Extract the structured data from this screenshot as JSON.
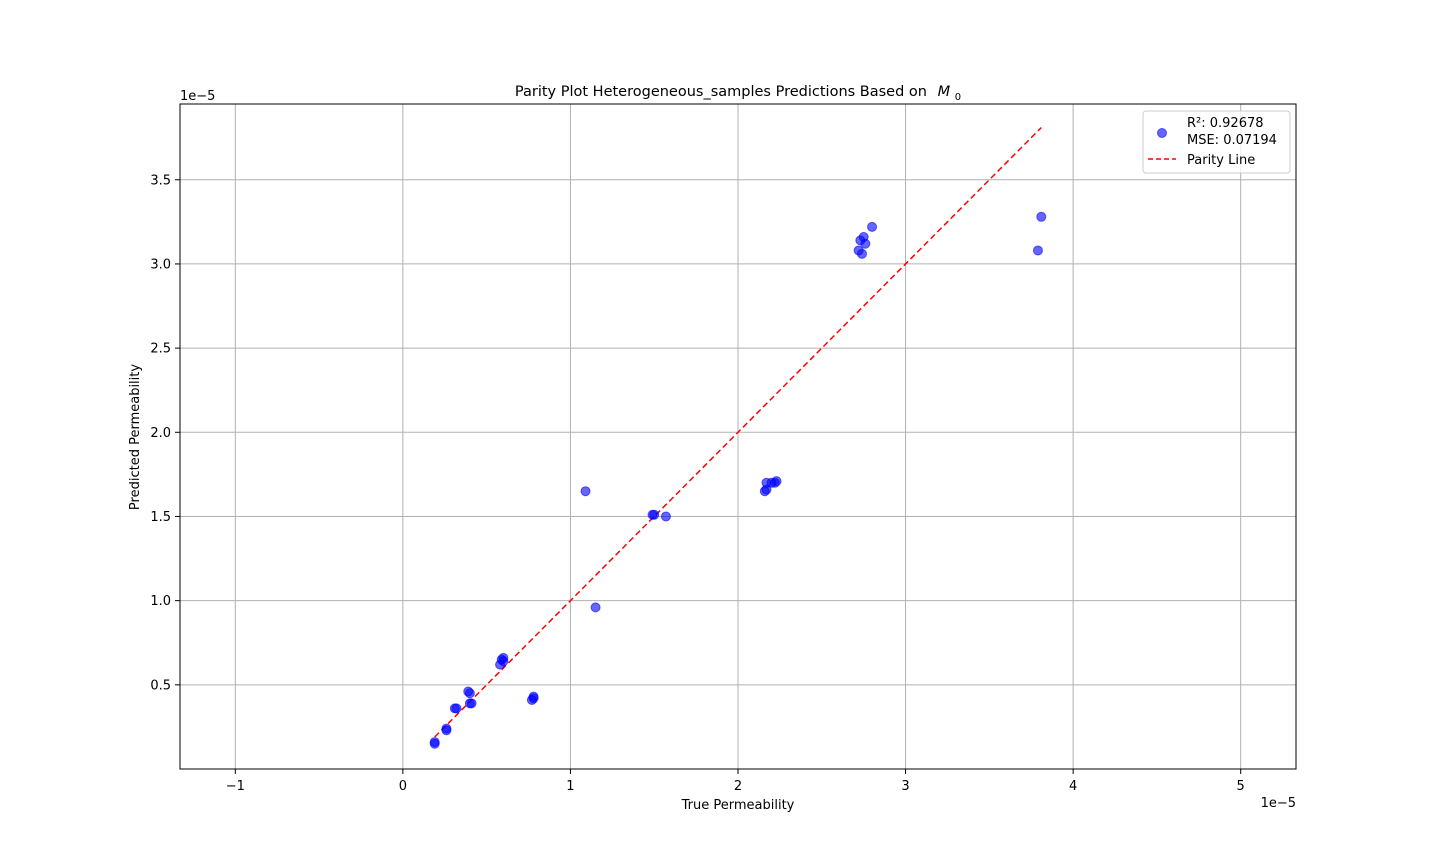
{
  "chart_data": {
    "type": "scatter",
    "title": "Parity Plot Heterogeneous_samples Predictions Based on",
    "title_math_base": "M",
    "title_math_sub": "0",
    "xlabel": "True Permeability",
    "ylabel": "Predicted Permeability",
    "x_offset_text": "1e−5",
    "y_offset_text": "1e−5",
    "xlim": [
      -1.33,
      5.33
    ],
    "ylim": [
      0.0,
      3.95
    ],
    "x_ticks": [
      -1,
      0,
      1,
      2,
      3,
      4,
      5
    ],
    "x_tick_labels": [
      "−1",
      "0",
      "1",
      "2",
      "3",
      "4",
      "5"
    ],
    "y_ticks": [
      0.5,
      1.0,
      1.5,
      2.0,
      2.5,
      3.0,
      3.5
    ],
    "y_tick_labels": [
      "0.5",
      "1.0",
      "1.5",
      "2.0",
      "2.5",
      "3.0",
      "3.5"
    ],
    "grid": true,
    "legend_position": "top-right",
    "series": [
      {
        "kind": "scatter",
        "color": "#0000ff",
        "legend_lines": [
          "R²: 0.92678",
          "MSE: 0.07194"
        ],
        "points": [
          [
            0.19,
            0.16
          ],
          [
            0.19,
            0.15
          ],
          [
            0.26,
            0.23
          ],
          [
            0.26,
            0.24
          ],
          [
            0.31,
            0.36
          ],
          [
            0.32,
            0.36
          ],
          [
            0.39,
            0.46
          ],
          [
            0.4,
            0.45
          ],
          [
            0.4,
            0.39
          ],
          [
            0.41,
            0.39
          ],
          [
            0.58,
            0.62
          ],
          [
            0.59,
            0.65
          ],
          [
            0.6,
            0.66
          ],
          [
            0.6,
            0.64
          ],
          [
            0.77,
            0.41
          ],
          [
            0.78,
            0.43
          ],
          [
            0.78,
            0.42
          ],
          [
            1.09,
            1.65
          ],
          [
            1.15,
            0.96
          ],
          [
            1.49,
            1.51
          ],
          [
            1.5,
            1.51
          ],
          [
            1.57,
            1.5
          ],
          [
            2.16,
            1.65
          ],
          [
            2.17,
            1.66
          ],
          [
            2.17,
            1.7
          ],
          [
            2.2,
            1.7
          ],
          [
            2.22,
            1.7
          ],
          [
            2.23,
            1.71
          ],
          [
            2.72,
            3.08
          ],
          [
            2.73,
            3.14
          ],
          [
            2.74,
            3.06
          ],
          [
            2.75,
            3.16
          ],
          [
            2.76,
            3.12
          ],
          [
            2.8,
            3.22
          ],
          [
            3.79,
            3.08
          ],
          [
            3.81,
            3.28
          ]
        ]
      },
      {
        "kind": "line",
        "name": "Parity Line",
        "color": "#ff0000",
        "dash": "dashed",
        "x": [
          0.19,
          3.81
        ],
        "y": [
          0.19,
          3.81
        ]
      }
    ]
  }
}
